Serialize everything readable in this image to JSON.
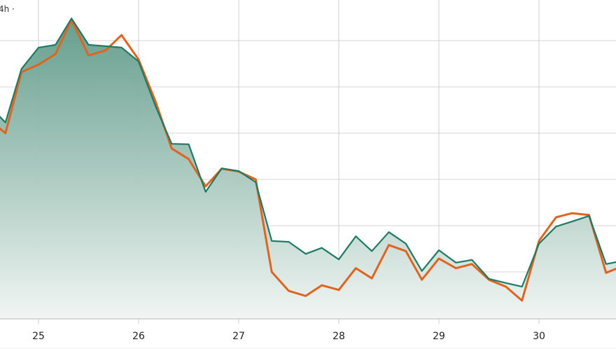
{
  "corner_label": "4h ·",
  "chart_data": {
    "type": "line",
    "interval": "4h",
    "xlim": [
      24.62,
      30.77
    ],
    "ylim": [
      0,
      6.88
    ],
    "grid": true,
    "legend": "none",
    "x_ticks": [
      25,
      26,
      27,
      28,
      29,
      30
    ],
    "x_tick_labels": [
      "25",
      "26",
      "27",
      "28",
      "29",
      "30"
    ],
    "x": [
      24.5,
      24.67,
      24.83,
      25,
      25.17,
      25.33,
      25.5,
      25.67,
      25.83,
      26,
      26.17,
      26.33,
      26.5,
      26.67,
      26.83,
      27,
      27.17,
      27.33,
      27.5,
      27.67,
      27.83,
      28,
      28.17,
      28.33,
      28.5,
      28.67,
      28.83,
      29,
      29.17,
      29.33,
      29.5,
      29.67,
      29.83,
      30,
      30.17,
      30.33,
      30.5,
      30.67,
      30.83
    ],
    "series": [
      {
        "color": "#1f7a64",
        "filled": true,
        "values": [
          4.61,
          4.23,
          5.39,
          5.85,
          5.91,
          6.48,
          5.91,
          5.88,
          5.85,
          5.55,
          4.58,
          3.77,
          3.76,
          2.73,
          3.24,
          3.18,
          2.94,
          1.67,
          1.65,
          1.39,
          1.52,
          1.27,
          1.77,
          1.45,
          1.86,
          1.61,
          1.02,
          1.47,
          1.2,
          1.26,
          0.85,
          0.76,
          0.68,
          1.61,
          1.98,
          2.09,
          2.21,
          1.17,
          1.24
        ]
      },
      {
        "color": "#e0641e",
        "filled": false,
        "values": [
          4.3,
          4.0,
          5.32,
          5.48,
          5.71,
          6.45,
          5.68,
          5.79,
          6.12,
          5.59,
          4.68,
          3.67,
          3.44,
          2.85,
          3.23,
          3.17,
          3.0,
          1.0,
          0.59,
          0.48,
          0.71,
          0.61,
          1.08,
          0.86,
          1.58,
          1.45,
          0.83,
          1.29,
          1.08,
          1.17,
          0.83,
          0.68,
          0.38,
          1.67,
          2.18,
          2.27,
          2.23,
          0.98,
          1.12
        ]
      }
    ]
  }
}
